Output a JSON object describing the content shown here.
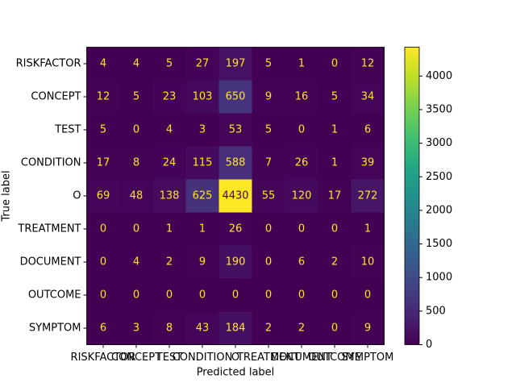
{
  "chart_data": {
    "type": "heatmap",
    "cmap": "viridis",
    "categories": [
      "RISKFACTOR",
      "CONCEPT",
      "TEST",
      "CONDITION",
      "O",
      "TREATMENT",
      "DOCUMENT",
      "OUTCOME",
      "SYMPTOM"
    ],
    "values": [
      [
        4,
        4,
        5,
        27,
        197,
        5,
        1,
        0,
        12
      ],
      [
        12,
        5,
        23,
        103,
        650,
        9,
        16,
        5,
        34
      ],
      [
        5,
        0,
        4,
        3,
        53,
        5,
        0,
        1,
        6
      ],
      [
        17,
        8,
        24,
        115,
        588,
        7,
        26,
        1,
        39
      ],
      [
        69,
        48,
        138,
        625,
        4430,
        55,
        120,
        17,
        272
      ],
      [
        0,
        0,
        1,
        1,
        26,
        0,
        0,
        0,
        1
      ],
      [
        0,
        4,
        2,
        9,
        190,
        0,
        6,
        2,
        10
      ],
      [
        0,
        0,
        0,
        0,
        0,
        0,
        0,
        0,
        0
      ],
      [
        6,
        3,
        8,
        43,
        184,
        2,
        2,
        0,
        9
      ]
    ],
    "xlabel": "Predicted label",
    "ylabel": "True label",
    "clim": [
      0,
      4430
    ],
    "cticks": [
      0,
      500,
      1000,
      1500,
      2000,
      2500,
      3000,
      3500,
      4000
    ]
  }
}
